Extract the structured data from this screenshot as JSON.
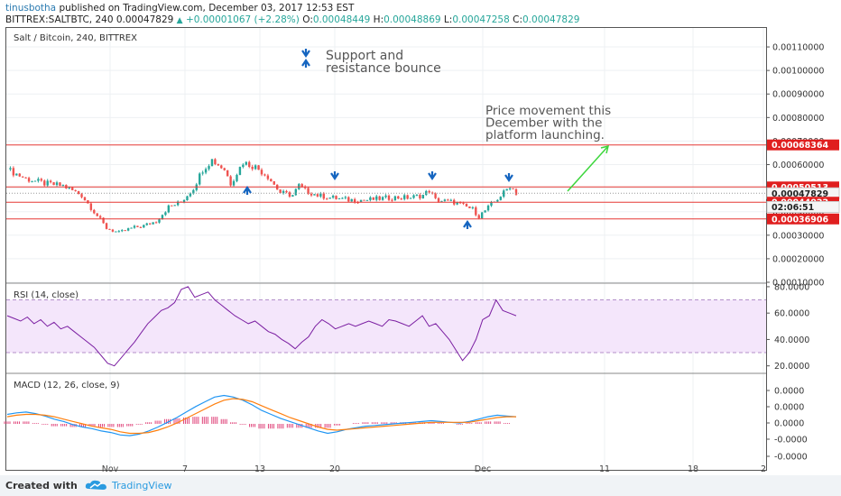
{
  "header": {
    "user": "tinusbotha",
    "published_text": "published on TradingView.com, December 03, 2017 12:53 EST",
    "symbol_line": "BITTREX:SALTBTC, 240",
    "price": "0.00047829",
    "change": "+0.00001067 (+2.28%)",
    "open_label": "O:",
    "open": "0.00048449",
    "high_label": "H:",
    "high": "0.00048869",
    "low_label": "L:",
    "low": "0.00047258",
    "close_label": "C:",
    "close": "0.00047829"
  },
  "footer": {
    "created_with": "Created with",
    "brand": "TradingView"
  },
  "chart_data": [
    {
      "type": "candlestick",
      "title": "Salt / Bitcoin, 240, BITTREX",
      "ylim": [
        0.0001,
        0.00115
      ],
      "y_ticks": [
        "0.00110000",
        "0.00100000",
        "0.00090000",
        "0.00080000",
        "0.00070000",
        "0.00060000",
        "0.00050000",
        "0.00040000",
        "0.00030000",
        "0.00020000",
        "0.00010000"
      ],
      "horizontal_levels": [
        0.00068364,
        0.00050513,
        0.00044022,
        0.00036906
      ],
      "price_labels": [
        {
          "text": "0.00068364",
          "value": 0.00068364
        },
        {
          "text": "0.00050513",
          "value": 0.00050513
        },
        {
          "text": "0.00047829",
          "value": 0.00047829
        },
        {
          "text": "0.00044022",
          "value": 0.00044022
        },
        {
          "text": "02:06:51",
          "value": 0.00042
        },
        {
          "text": "0.00036906",
          "value": 0.00036906
        }
      ],
      "close_path": [
        [
          0,
          0.00058
        ],
        [
          6,
          0.00054
        ],
        [
          12,
          0.00052
        ],
        [
          18,
          0.00051
        ],
        [
          24,
          0.00047
        ],
        [
          28,
          0.0004
        ],
        [
          32,
          0.00033
        ],
        [
          36,
          0.00031
        ],
        [
          40,
          0.00033
        ],
        [
          44,
          0.00034
        ],
        [
          48,
          0.00036
        ],
        [
          52,
          0.00042
        ],
        [
          56,
          0.00044
        ],
        [
          60,
          0.0005
        ],
        [
          63,
          0.00058
        ],
        [
          66,
          0.00062
        ],
        [
          70,
          0.00058
        ],
        [
          72,
          0.00052
        ],
        [
          76,
          0.00061
        ],
        [
          80,
          0.00059
        ],
        [
          84,
          0.00055
        ],
        [
          88,
          0.00048
        ],
        [
          92,
          0.00047
        ],
        [
          94,
          0.00051
        ],
        [
          96,
          0.00049
        ],
        [
          100,
          0.00047
        ],
        [
          104,
          0.00046
        ],
        [
          110,
          0.00045
        ],
        [
          116,
          0.00045
        ],
        [
          124,
          0.00046
        ],
        [
          130,
          0.00046
        ],
        [
          134,
          0.00047
        ],
        [
          136,
          0.00049
        ],
        [
          138,
          0.00045
        ],
        [
          144,
          0.00044
        ],
        [
          150,
          0.00041
        ],
        [
          152,
          0.00038
        ],
        [
          156,
          0.00043
        ],
        [
          160,
          0.00048
        ],
        [
          162,
          0.00051
        ],
        [
          164,
          0.00048
        ]
      ],
      "annotations": [
        {
          "text": "Support and resistance bounce",
          "lines": [
            "Support and",
            "resistance bounce"
          ]
        },
        {
          "text": "Price movement this December with the platform launching.",
          "lines": [
            "Price movement this",
            "December with the",
            "platform launching."
          ]
        }
      ],
      "x_tick_labels": [
        "Nov",
        "7",
        "13",
        "20",
        "Dec",
        "11",
        "18",
        "2"
      ]
    },
    {
      "type": "line",
      "title": "RSI (14, close)",
      "ylim": [
        15,
        82
      ],
      "y_ticks": [
        "80.0000",
        "60.0000",
        "40.0000",
        "20.0000"
      ],
      "band": [
        30,
        70
      ],
      "values": [
        58,
        56,
        54,
        57,
        52,
        55,
        50,
        53,
        48,
        50,
        46,
        42,
        38,
        34,
        28,
        22,
        20,
        26,
        32,
        38,
        45,
        52,
        57,
        62,
        64,
        68,
        78,
        80,
        72,
        74,
        76,
        70,
        66,
        62,
        58,
        55,
        52,
        54,
        50,
        46,
        44,
        40,
        37,
        33,
        38,
        42,
        50,
        55,
        52,
        48,
        50,
        52,
        50,
        52,
        54,
        52,
        50,
        55,
        54,
        52,
        50,
        54,
        58,
        50,
        52,
        46,
        40,
        32,
        24,
        30,
        40,
        55,
        58,
        70,
        62,
        60,
        58
      ]
    },
    {
      "type": "line",
      "title": "MACD (12, 26, close, 9)",
      "ylim": [
        -4e-06,
        3.8e-05
      ],
      "y_ticks": [
        "0.0000",
        "0.0000",
        "0.0000",
        "-0.0000",
        "-0.0000"
      ],
      "series": [
        {
          "values": [
            12,
            14,
            15,
            13,
            10,
            6,
            3,
            -1,
            -4,
            -6,
            -9,
            -11,
            -14,
            -15,
            -13,
            -9,
            -4,
            2,
            8,
            15,
            22,
            28,
            34,
            36,
            34,
            30,
            24,
            17,
            12,
            7,
            3,
            -1,
            -5,
            -9,
            -12,
            -10,
            -7,
            -5,
            -3,
            -2,
            -1,
            0,
            1,
            2,
            3,
            4,
            3,
            2,
            1,
            3,
            6,
            9,
            11,
            10,
            9
          ]
        },
        {
          "values": [
            9,
            11,
            12,
            12,
            11,
            9,
            6,
            3,
            0,
            -3,
            -5,
            -7,
            -10,
            -12,
            -12,
            -11,
            -8,
            -4,
            1,
            7,
            13,
            19,
            25,
            30,
            32,
            31,
            28,
            23,
            18,
            13,
            8,
            4,
            0,
            -4,
            -7,
            -8,
            -7,
            -6,
            -5,
            -4,
            -3,
            -2,
            -1,
            0,
            1,
            2,
            2,
            2,
            2,
            2,
            4,
            6,
            8,
            9,
            9
          ]
        }
      ],
      "histogram": [
        3,
        3,
        3,
        1,
        -1,
        -3,
        -3,
        -4,
        -4,
        -3,
        -4,
        -4,
        -4,
        -3,
        -1,
        2,
        4,
        6,
        7,
        8,
        9,
        9,
        9,
        6,
        2,
        -1,
        -4,
        -6,
        -6,
        -6,
        -5,
        -5,
        -5,
        -5,
        -5,
        -2,
        0,
        1,
        2,
        2,
        2,
        2,
        2,
        2,
        2,
        2,
        1,
        0,
        -1,
        1,
        2,
        3,
        3,
        1,
        0
      ]
    }
  ]
}
